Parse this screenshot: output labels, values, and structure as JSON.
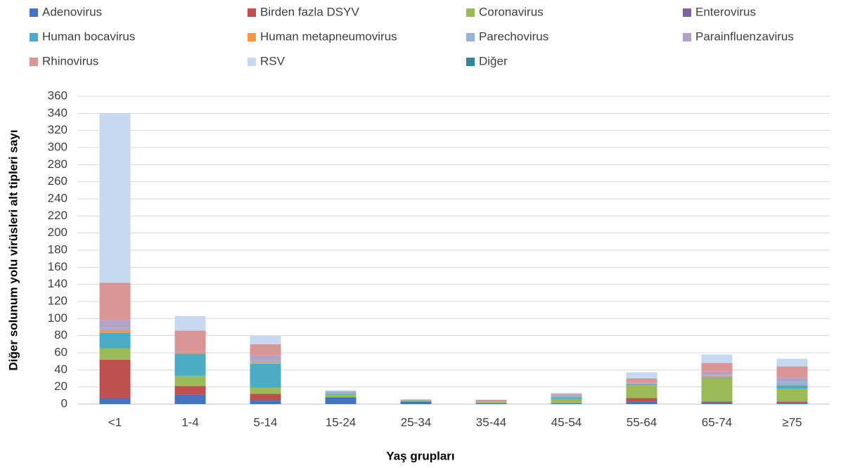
{
  "chart_data": {
    "type": "stacked_bar",
    "y_label": "Diğer solunum yolu virüsleri alt tipleri sayı",
    "x_label": "Yaş grupları",
    "categories": [
      "<1",
      "1-4",
      "5-14",
      "15-24",
      "25-34",
      "35-44",
      "45-54",
      "55-64",
      "65-74",
      "≥75"
    ],
    "series": [
      {
        "name": "Adenovirus",
        "color": "#4472c4",
        "values": [
          7,
          11,
          4,
          8,
          3,
          1,
          1,
          3,
          2,
          1
        ]
      },
      {
        "name": "Birden fazla DSYV",
        "color": "#c0504d",
        "values": [
          45,
          10,
          8,
          0,
          0,
          0,
          0,
          4,
          1,
          2
        ]
      },
      {
        "name": "Coronavirus",
        "color": "#9bbb59",
        "values": [
          13,
          12,
          7,
          3,
          1,
          2,
          5,
          15,
          27,
          15
        ]
      },
      {
        "name": "Enterovirus",
        "color": "#8064a2",
        "values": [
          0,
          0,
          0,
          0,
          0,
          0,
          0,
          0,
          0,
          0
        ]
      },
      {
        "name": "Human bocavirus",
        "color": "#4bacc6",
        "values": [
          18,
          26,
          28,
          1,
          0,
          0,
          2,
          1,
          1,
          4
        ]
      },
      {
        "name": "Human metapneumovirus",
        "color": "#f79646",
        "values": [
          4,
          1,
          2,
          0,
          0,
          0,
          0,
          0,
          2,
          1
        ]
      },
      {
        "name": "Parechovirus",
        "color": "#95b3d7",
        "values": [
          2,
          0,
          2,
          1,
          0,
          0,
          2,
          1,
          1,
          3
        ]
      },
      {
        "name": "Parainfluenzavirus",
        "color": "#b3a2c7",
        "values": [
          9,
          2,
          6,
          1,
          0,
          0,
          1,
          1,
          4,
          5
        ]
      },
      {
        "name": "Rhinovirus",
        "color": "#d99694",
        "values": [
          44,
          24,
          13,
          1,
          1,
          2,
          1,
          5,
          10,
          13
        ]
      },
      {
        "name": "RSV",
        "color": "#c6d9f0",
        "values": [
          198,
          17,
          10,
          1,
          1,
          0,
          1,
          7,
          10,
          9
        ]
      },
      {
        "name": "Diğer",
        "color": "#31859c",
        "values": [
          0,
          0,
          0,
          0,
          0,
          0,
          0,
          0,
          0,
          0
        ]
      }
    ],
    "ylim": [
      0,
      360
    ],
    "yticks": [
      0,
      20,
      40,
      60,
      80,
      100,
      120,
      140,
      160,
      180,
      200,
      220,
      240,
      260,
      280,
      300,
      320,
      340,
      360
    ],
    "grid": true
  }
}
